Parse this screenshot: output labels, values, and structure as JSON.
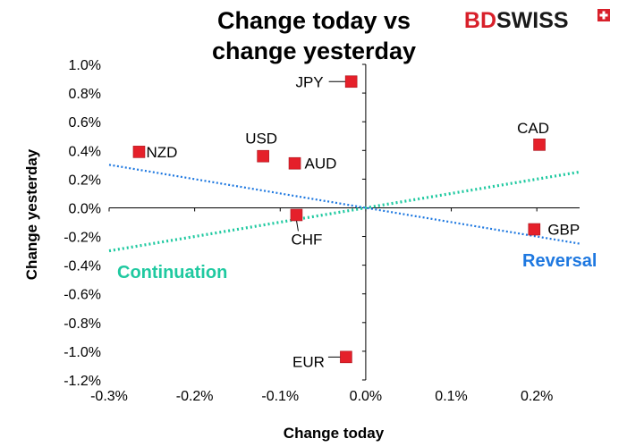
{
  "logo": {
    "part1": "BD",
    "part2": "SWISS",
    "part1_color": "#d8202a",
    "part2_color": "#1a1a1a"
  },
  "colors": {
    "marker": "#e5202a",
    "continuation": "#1fc9a0",
    "reversal": "#1e78e0"
  },
  "chart_data": {
    "type": "scatter",
    "title_lines": [
      "Change today vs",
      "change yesterday"
    ],
    "xlabel": "Change today",
    "ylabel": "Change yesterday",
    "xlim": [
      -0.3,
      0.25
    ],
    "ylim": [
      -1.2,
      1.0
    ],
    "x_ticks": [
      -0.3,
      -0.2,
      -0.1,
      0.0,
      0.1,
      0.2
    ],
    "x_tick_labels": [
      "-0.3%",
      "-0.2%",
      "-0.1%",
      "0.0%",
      "0.1%",
      "0.2%"
    ],
    "y_ticks": [
      1.0,
      0.8,
      0.6,
      0.4,
      0.2,
      0.0,
      -0.2,
      -0.4,
      -0.6,
      -0.8,
      -1.0,
      -1.2
    ],
    "y_tick_labels": [
      "1.0%",
      "0.8%",
      "0.6%",
      "0.4%",
      "0.2%",
      "0.0%",
      "-0.2%",
      "-0.4%",
      "-0.6%",
      "-0.8%",
      "-1.0%",
      "-1.2%"
    ],
    "points": [
      {
        "label": "JPY",
        "x": -0.017,
        "y": 0.88
      },
      {
        "label": "CAD",
        "x": 0.203,
        "y": 0.44
      },
      {
        "label": "NZD",
        "x": -0.265,
        "y": 0.39
      },
      {
        "label": "USD",
        "x": -0.12,
        "y": 0.36
      },
      {
        "label": "AUD",
        "x": -0.083,
        "y": 0.31
      },
      {
        "label": "CHF",
        "x": -0.081,
        "y": -0.05
      },
      {
        "label": "GBP",
        "x": 0.197,
        "y": -0.15
      },
      {
        "label": "EUR",
        "x": -0.023,
        "y": -1.04
      }
    ],
    "trend_lines": [
      {
        "name": "Continuation",
        "x": [
          -0.3,
          0.25
        ],
        "y": [
          -0.3,
          0.25
        ]
      },
      {
        "name": "Reversal",
        "x": [
          -0.3,
          0.25
        ],
        "y": [
          0.3,
          -0.25
        ]
      }
    ]
  }
}
